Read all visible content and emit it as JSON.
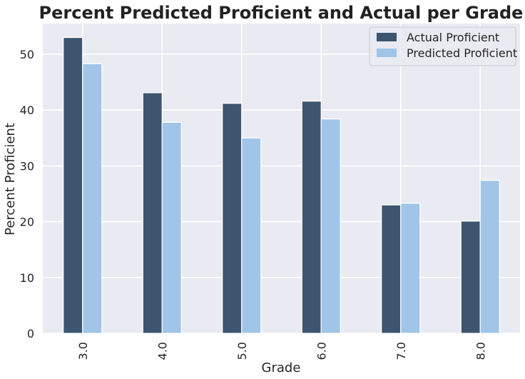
{
  "chart_data": {
    "type": "bar",
    "title": "Percent Predicted Proficient and Actual per Grade",
    "xlabel": "Grade",
    "ylabel": "Percent Proficient",
    "categories": [
      "3.0",
      "4.0",
      "5.0",
      "6.0",
      "7.0",
      "8.0"
    ],
    "series": [
      {
        "name": "Actual Proficient",
        "color": "#3d556e",
        "values": [
          53.0,
          43.1,
          41.2,
          41.6,
          23.0,
          20.1
        ]
      },
      {
        "name": "Predicted Proficient",
        "color": "#a0c5e8",
        "values": [
          48.3,
          37.8,
          35.0,
          38.4,
          23.3,
          27.4
        ]
      }
    ],
    "ylim": [
      0,
      55.5
    ],
    "yticks": [
      0,
      10,
      20,
      30,
      40,
      50
    ],
    "grid": true,
    "legend_position": "top-right",
    "background_color": "#eaeaf2",
    "grid_color": "#ffffff"
  }
}
